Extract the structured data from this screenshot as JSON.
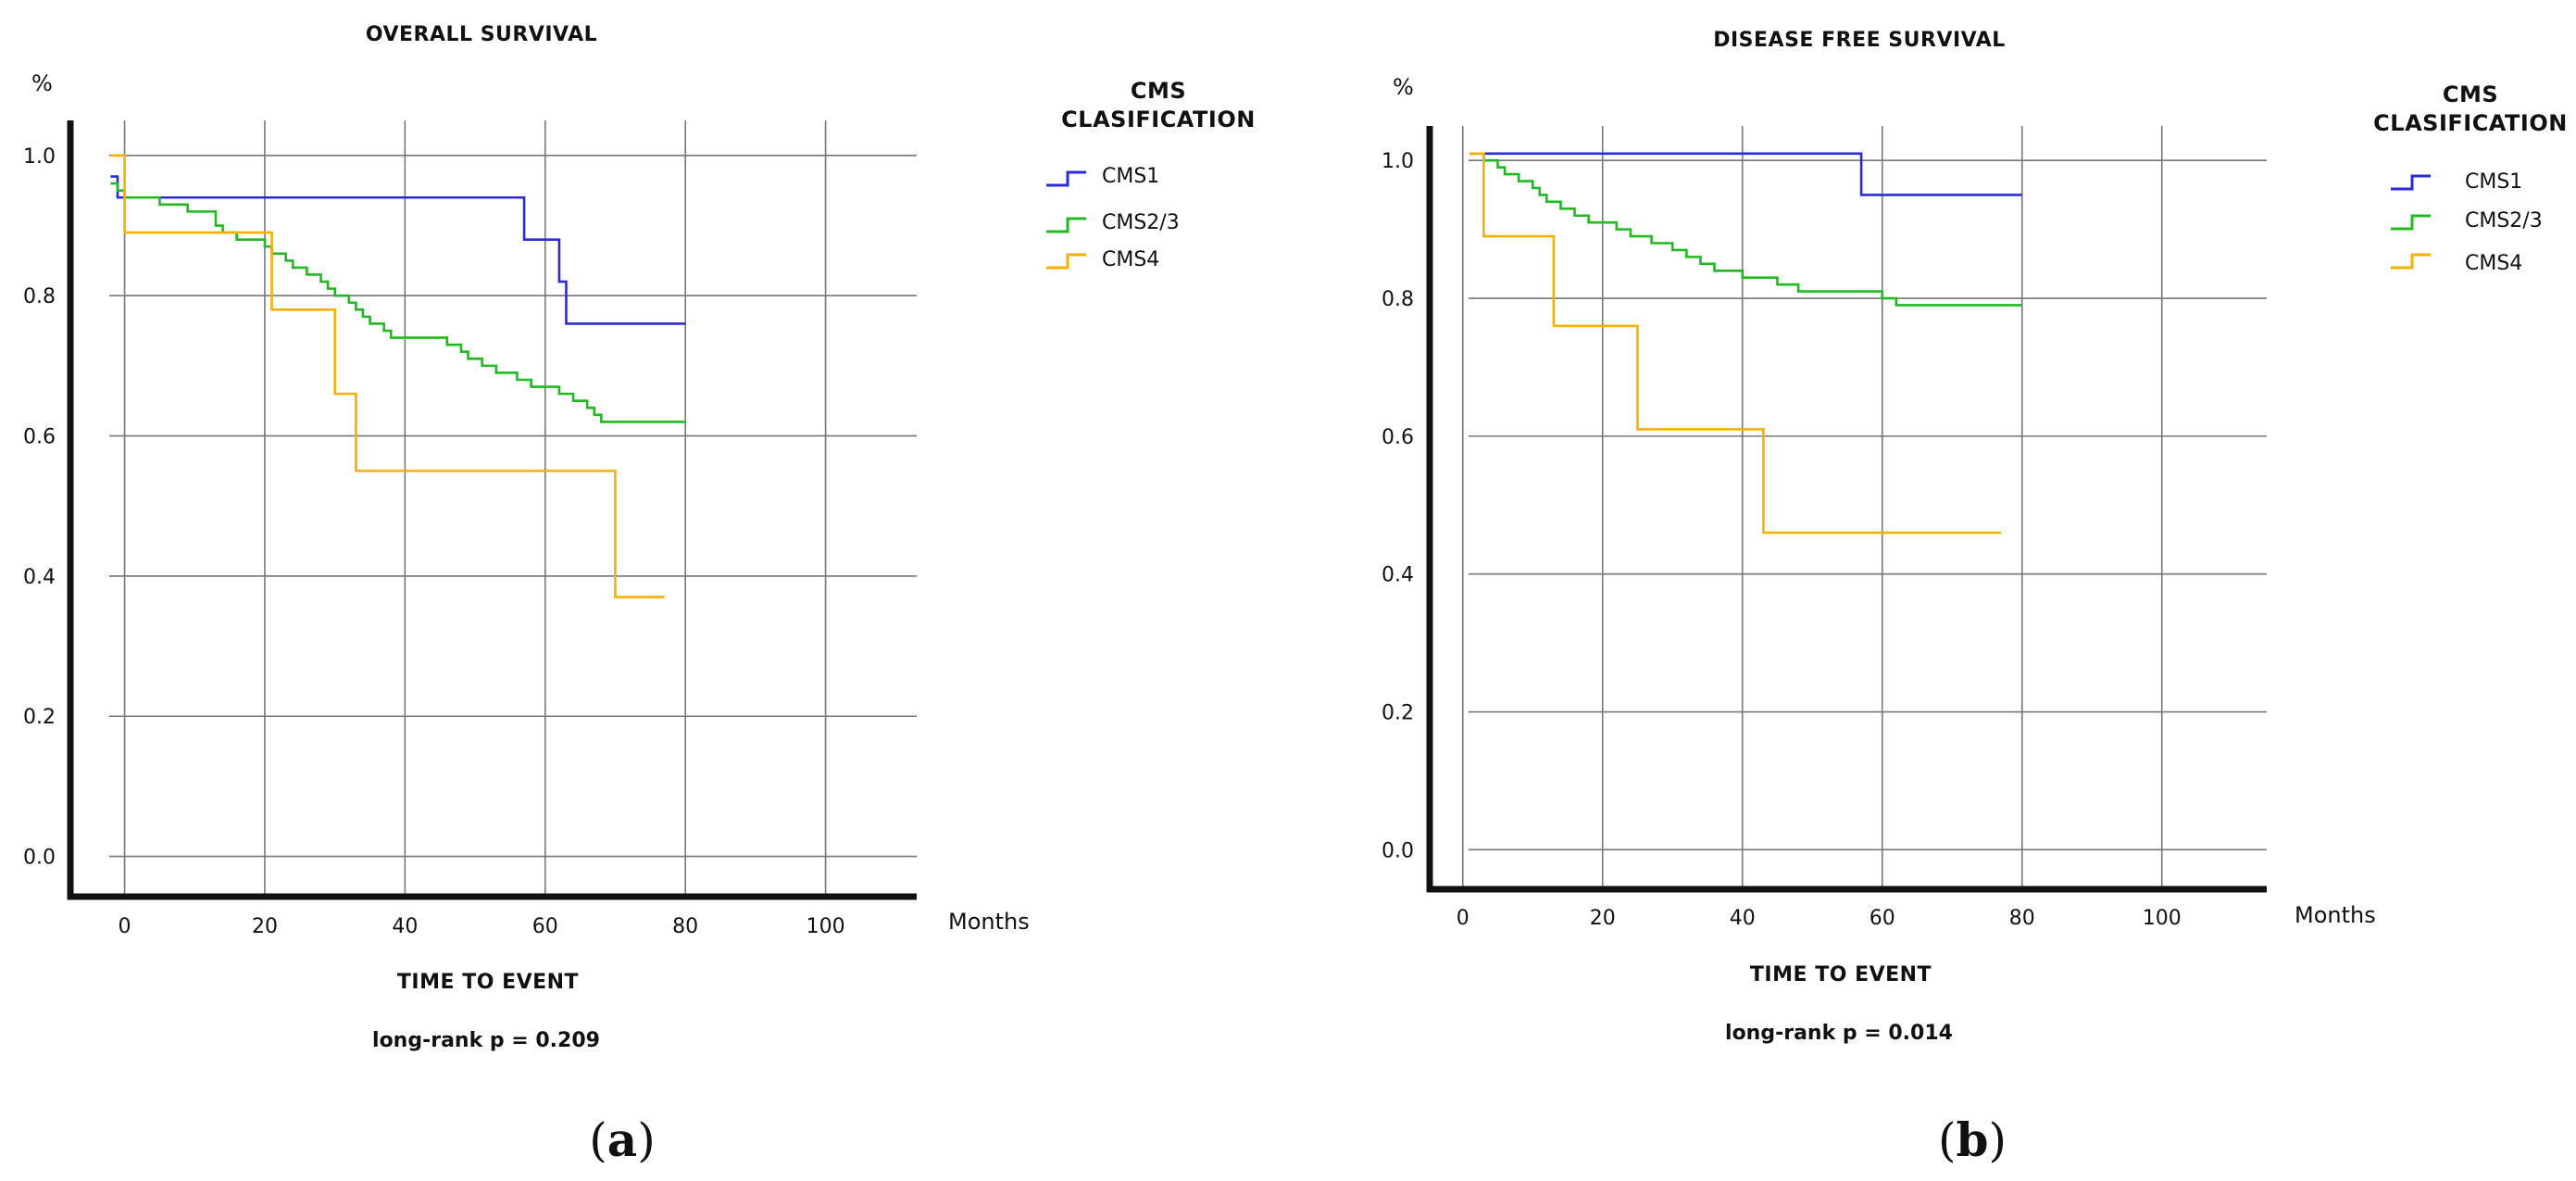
{
  "chart_data": [
    {
      "type": "line",
      "title": "OVERALL SURVIVAL",
      "ylabel": "%",
      "xlabel": "TIME TO EVENT",
      "x_unit": "Months",
      "xlim": [
        -8,
        113
      ],
      "ylim": [
        -0.06,
        1.05
      ],
      "x_ticks": [
        0,
        20,
        40,
        60,
        80,
        100
      ],
      "y_ticks": [
        0.0,
        0.2,
        0.4,
        0.6,
        0.8,
        1.0
      ],
      "x_tick_labels": [
        "0",
        "20",
        "40",
        "60",
        "80",
        "100"
      ],
      "y_tick_labels": [
        "0.0",
        "0.2",
        "0.4",
        "0.6",
        "0.8",
        "1.0"
      ],
      "grid": true,
      "statistic": "long-rank p = 0.209",
      "caption": {
        "open": "(",
        "letter": "a",
        "close": ")"
      },
      "legend": {
        "title_line1": "CMS",
        "title_line2": "CLASIFICATION",
        "entries": [
          "CMS1",
          "CMS2/3",
          "CMS4"
        ]
      },
      "series": [
        {
          "name": "CMS1",
          "color": "#2b2bd4",
          "x": [
            -2,
            -1,
            57,
            62,
            63,
            80
          ],
          "y": [
            0.97,
            0.94,
            0.88,
            0.82,
            0.76,
            0.76
          ]
        },
        {
          "name": "CMS2/3",
          "color": "#22b822",
          "x": [
            -2,
            -1,
            0,
            5,
            9,
            13,
            14,
            16,
            20,
            21,
            23,
            24,
            26,
            28,
            29,
            30,
            32,
            33,
            34,
            35,
            37,
            38,
            41,
            46,
            48,
            49,
            50,
            51,
            52,
            53,
            54,
            55,
            56,
            57,
            58,
            60,
            62,
            64,
            66,
            67,
            68,
            69,
            80
          ],
          "y": [
            0.96,
            0.95,
            0.94,
            0.93,
            0.92,
            0.9,
            0.89,
            0.88,
            0.87,
            0.86,
            0.85,
            0.84,
            0.83,
            0.82,
            0.81,
            0.8,
            0.79,
            0.78,
            0.77,
            0.76,
            0.75,
            0.74,
            0.74,
            0.73,
            0.72,
            0.71,
            0.71,
            0.7,
            0.7,
            0.69,
            0.69,
            0.69,
            0.68,
            0.68,
            0.67,
            0.67,
            0.66,
            0.65,
            0.64,
            0.63,
            0.62,
            0.62,
            0.62
          ]
        },
        {
          "name": "CMS4",
          "color": "#f5b000",
          "x": [
            -2,
            0,
            21,
            30,
            33,
            70,
            77
          ],
          "y": [
            1.0,
            0.89,
            0.78,
            0.66,
            0.55,
            0.37,
            0.37
          ]
        }
      ]
    },
    {
      "type": "line",
      "title": "DISEASE FREE SURVIVAL",
      "ylabel": "%",
      "xlabel": "TIME TO EVENT",
      "x_unit": "Months",
      "xlim": [
        -5,
        115
      ],
      "ylim": [
        -0.06,
        1.05
      ],
      "x_ticks": [
        0,
        20,
        40,
        60,
        80,
        100
      ],
      "y_ticks": [
        0.0,
        0.2,
        0.4,
        0.6,
        0.8,
        1.0
      ],
      "x_tick_labels": [
        "0",
        "20",
        "40",
        "60",
        "80",
        "100"
      ],
      "y_tick_labels": [
        "0.0",
        "0.2",
        "0.4",
        "0.6",
        "0.8",
        "1.0"
      ],
      "grid": true,
      "statistic": "long-rank p = 0.014",
      "caption": {
        "open": "(",
        "letter": "b",
        "close": ")"
      },
      "legend": {
        "title_line1": "CMS",
        "title_line2": "CLASIFICATION",
        "entries": [
          "CMS1",
          "CMS2/3",
          "CMS4"
        ]
      },
      "series": [
        {
          "name": "CMS1",
          "color": "#2b2bd4",
          "x": [
            1,
            57,
            80
          ],
          "y": [
            1.01,
            0.95,
            0.95
          ]
        },
        {
          "name": "CMS2/3",
          "color": "#22b822",
          "x": [
            1,
            3,
            5,
            6,
            8,
            10,
            11,
            12,
            14,
            16,
            18,
            20,
            22,
            24,
            27,
            30,
            32,
            34,
            36,
            38,
            40,
            45,
            48,
            50,
            55,
            60,
            62,
            80
          ],
          "y": [
            1.01,
            1.0,
            0.99,
            0.98,
            0.97,
            0.96,
            0.95,
            0.94,
            0.93,
            0.92,
            0.91,
            0.91,
            0.9,
            0.89,
            0.88,
            0.87,
            0.86,
            0.85,
            0.84,
            0.84,
            0.83,
            0.82,
            0.81,
            0.81,
            0.81,
            0.8,
            0.79,
            0.79
          ]
        },
        {
          "name": "CMS4",
          "color": "#f5b000",
          "x": [
            1,
            3,
            13,
            25,
            43,
            77
          ],
          "y": [
            1.01,
            0.89,
            0.76,
            0.61,
            0.46,
            0.46
          ]
        }
      ]
    }
  ]
}
